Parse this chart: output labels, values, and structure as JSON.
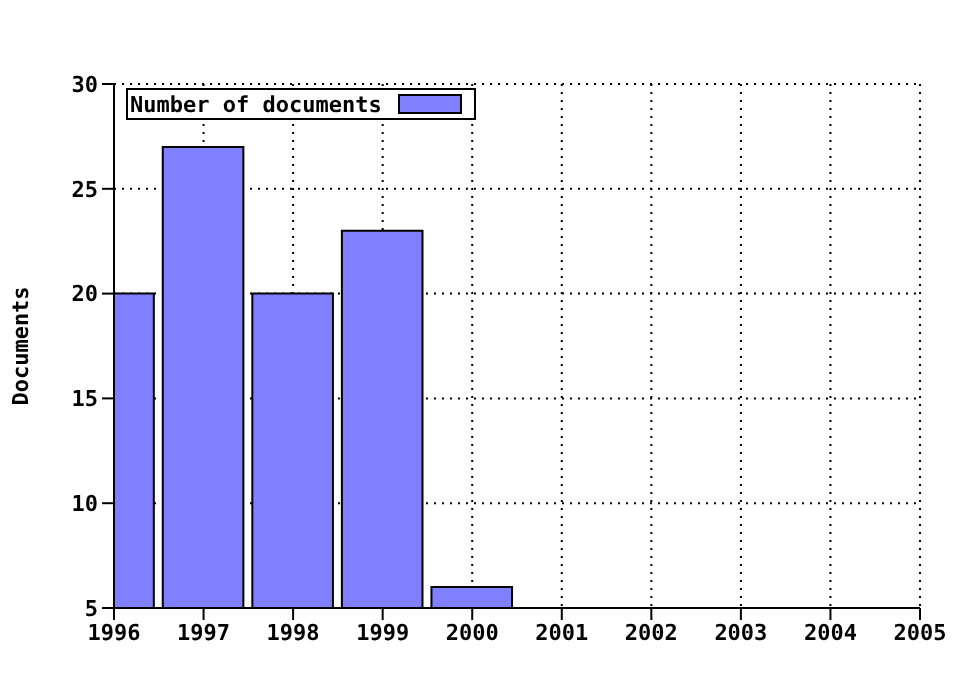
{
  "chart_data": {
    "type": "bar",
    "ylabel": "Documents",
    "x": [
      1996,
      1997,
      1998,
      1999,
      2000
    ],
    "series": [
      {
        "name": "Number of documents",
        "color": "#8080ff",
        "values": [
          20,
          27,
          20,
          23,
          6
        ]
      }
    ],
    "xlim": [
      1996,
      2005
    ],
    "xticks": [
      1996,
      1997,
      1998,
      1999,
      2000,
      2001,
      2002,
      2003,
      2004,
      2005
    ],
    "ylim": [
      5,
      30
    ],
    "yticks": [
      5,
      10,
      15,
      20,
      25,
      30
    ],
    "grid": true,
    "legend": "top left"
  }
}
